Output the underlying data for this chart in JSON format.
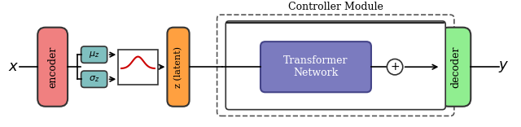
{
  "bg_color": "#ffffff",
  "encoder_color": "#f08080",
  "decoder_color": "#90ee90",
  "latent_color": "#ffa040",
  "muz_color": "#7fbfbf",
  "sigz_color": "#7fbfbf",
  "transformer_color": "#7b7bbf",
  "gauss_box_color": "#ffffff",
  "gauss_curve_color": "#cc0000",
  "controller_label": "Controller Module",
  "encoder_label": "encoder",
  "decoder_label": "decoder",
  "latent_label": "z (latent)",
  "muz_label": "$\\mu_z$",
  "sigz_label": "$\\sigma_z$",
  "transformer_label": "Transformer\nNetwork",
  "x_label": "$x$",
  "y_label": "$y$",
  "plus_label": "$+$"
}
